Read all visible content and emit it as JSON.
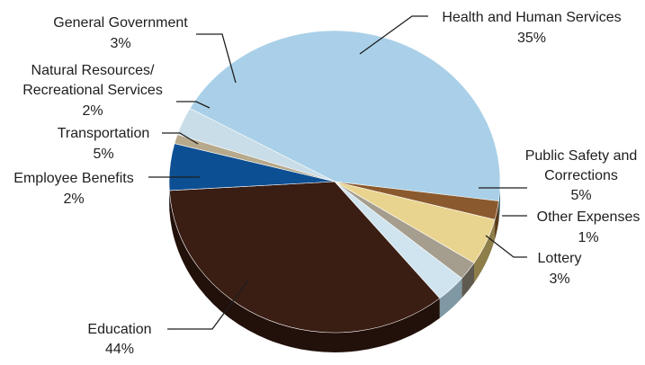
{
  "chart_data": {
    "type": "pie",
    "title": "",
    "slices": [
      {
        "name": "Education",
        "label": "Education",
        "value_label": "44%",
        "value": 44,
        "color": "#a9d0e8",
        "side_color": "#3f6f80"
      },
      {
        "name": "Employee Benefits",
        "label": "Employee Benefits",
        "value_label": "2%",
        "value": 2,
        "color": "#8a5a2e",
        "side_color": "#5c3a1c"
      },
      {
        "name": "Transportation",
        "label": "Transportation",
        "value_label": "5%",
        "value": 5,
        "color": "#e9d48f",
        "side_color": "#8e7e4a"
      },
      {
        "name": "Natural Resources/ Recreational Services",
        "label_line1": "Natural Resources/",
        "label_line2": "Recreational Services",
        "value_label": "2%",
        "value": 2,
        "color": "#a59e8f",
        "side_color": "#5f5a50"
      },
      {
        "name": "General Government",
        "label": "General Government",
        "value_label": "3%",
        "value": 3,
        "color": "#cfe4ee",
        "side_color": "#7f98a4"
      },
      {
        "name": "Health and Human Services",
        "label": "Health and Human Services",
        "value_label": "35%",
        "value": 35,
        "color": "#3a1d13",
        "side_color": "#22100a"
      },
      {
        "name": "Public Safety and Corrections",
        "label_line1": "Public Safety and",
        "label_line2": "Corrections",
        "value_label": "5%",
        "value": 5,
        "color": "#0d4f93",
        "side_color": "#08305a"
      },
      {
        "name": "Other Expenses",
        "label": "Other Expenses",
        "value_label": "1%",
        "value": 1,
        "color": "#b7a98c",
        "side_color": "#7a6f58"
      },
      {
        "name": "Lottery",
        "label": "Lottery",
        "value_label": "3%",
        "value": 3,
        "color": "#c8dde8",
        "side_color": "#85a2b0"
      }
    ],
    "legend": "none",
    "label_style": "outside with leader lines"
  }
}
